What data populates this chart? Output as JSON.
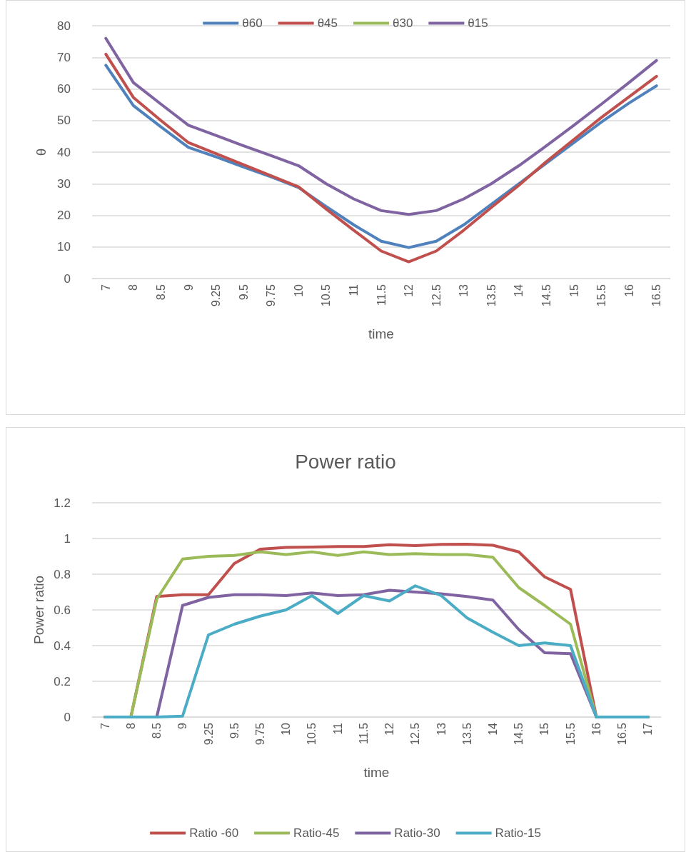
{
  "chart_data": [
    {
      "type": "line",
      "xlabel": "time",
      "ylabel": "θ",
      "categories": [
        "7",
        "8",
        "8.5",
        "9",
        "9.25",
        "9.5",
        "9.75",
        "10",
        "10.5",
        "11",
        "11.5",
        "12",
        "12.5",
        "13",
        "13.5",
        "14",
        "14.5",
        "15",
        "15.5",
        "16",
        "16.5"
      ],
      "series": [
        {
          "name": "θ60",
          "color": "#4f81bd",
          "values": [
            67.5,
            54.7,
            48,
            41.5,
            38.5,
            35.3,
            32.2,
            28.8,
            22.8,
            17,
            11.8,
            9.8,
            11.8,
            17,
            23.5,
            30,
            36.5,
            43,
            49.5,
            55.5,
            61
          ]
        },
        {
          "name": "θ45",
          "color": "#c0504d",
          "values": [
            71,
            57.3,
            50,
            43,
            39.5,
            36,
            32.5,
            29,
            22,
            15.3,
            8.7,
            5.3,
            8.7,
            15.3,
            22.5,
            29.5,
            37,
            44,
            51,
            57.5,
            64
          ]
        },
        {
          "name": "θ30",
          "color": "#9bbb59",
          "values": [
            null,
            null,
            null,
            null,
            null,
            null,
            null,
            null,
            null,
            null,
            null,
            null,
            null,
            null,
            null,
            null,
            null,
            null,
            null,
            null,
            null
          ]
        },
        {
          "name": "θ15",
          "color": "#8064a2",
          "values": [
            76,
            62,
            55.2,
            48.5,
            45.3,
            42,
            38.9,
            35.7,
            30,
            25.2,
            21.5,
            20.3,
            21.5,
            25.2,
            30,
            35.7,
            42,
            48.5,
            55.2,
            62,
            69
          ]
        }
      ],
      "ylim": [
        0,
        80
      ],
      "yticks": [
        0,
        10,
        20,
        30,
        40,
        50,
        60,
        70,
        80
      ],
      "grid": "y",
      "legend": "top",
      "marker": "none",
      "line_style": "solid"
    },
    {
      "type": "line",
      "title": "Power ratio",
      "xlabel": "time",
      "ylabel": "Power ratio",
      "categories": [
        "7",
        "8",
        "8.5",
        "9",
        "9.25",
        "9.5",
        "9.75",
        "10",
        "10.5",
        "11",
        "11.5",
        "12",
        "12.5",
        "13",
        "13.5",
        "14",
        "14.5",
        "15",
        "15.5",
        "16",
        "16.5",
        "17"
      ],
      "series": [
        {
          "name": "Ratio -60",
          "color": "#c0504d",
          "values": [
            0,
            0,
            0.675,
            0.685,
            0.685,
            0.86,
            0.94,
            0.95,
            0.952,
            0.955,
            0.955,
            0.965,
            0.96,
            0.967,
            0.968,
            0.962,
            0.925,
            0.785,
            0.715,
            0,
            0,
            0
          ]
        },
        {
          "name": "Ratio-45",
          "color": "#9bbb59",
          "values": [
            0,
            0,
            0.66,
            0.885,
            0.9,
            0.905,
            0.925,
            0.91,
            0.925,
            0.905,
            0.925,
            0.91,
            0.915,
            0.91,
            0.91,
            0.895,
            0.725,
            0.625,
            0.52,
            0,
            0,
            0
          ]
        },
        {
          "name": "Ratio-30",
          "color": "#8064a2",
          "values": [
            0,
            0,
            0,
            0.625,
            0.67,
            0.685,
            0.685,
            0.68,
            0.695,
            0.68,
            0.685,
            0.71,
            0.7,
            0.69,
            0.675,
            0.655,
            0.49,
            0.36,
            0.355,
            0,
            0,
            0
          ]
        },
        {
          "name": "Ratio-15",
          "color": "#4bacc6",
          "values": [
            0,
            0,
            0,
            0.005,
            0.46,
            0.52,
            0.565,
            0.6,
            0.68,
            0.58,
            0.68,
            0.65,
            0.735,
            0.68,
            0.555,
            0.475,
            0.4,
            0.415,
            0.4,
            0,
            0,
            0
          ]
        }
      ],
      "ylim": [
        0,
        1.2
      ],
      "yticks": [
        0,
        0.2,
        0.4,
        0.6,
        0.8,
        1,
        1.2
      ],
      "grid": "y",
      "legend": "bottom",
      "marker": "none",
      "line_style": "solid"
    }
  ]
}
